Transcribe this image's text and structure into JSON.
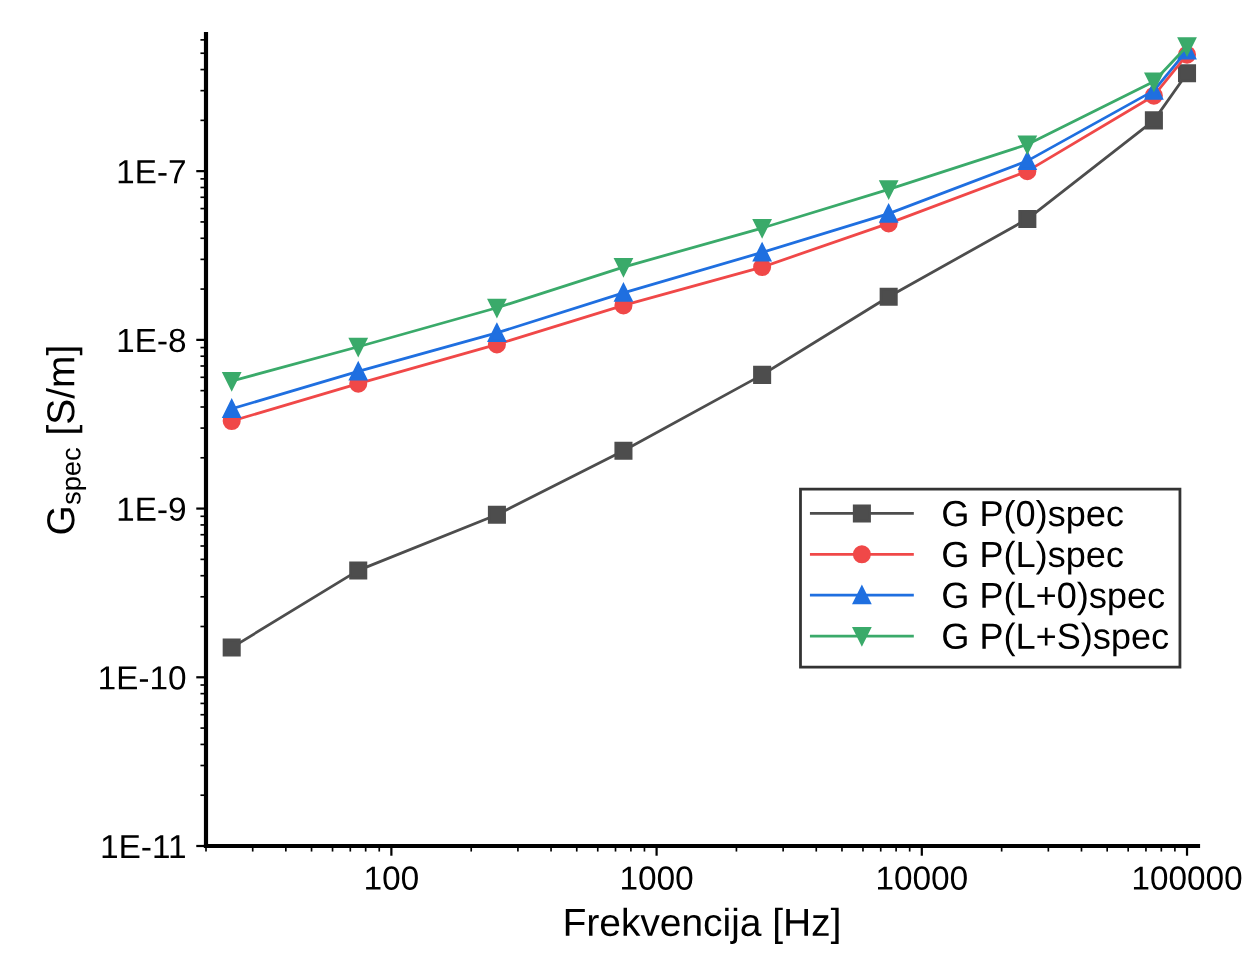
{
  "chart_data": {
    "type": "line",
    "xlabel": "Frekvencija [Hz]",
    "ylabel": "G$_{spec}$ [S/m]",
    "log": "xy",
    "grid": false,
    "legend": "right",
    "x": [
      25,
      75,
      250,
      750,
      2500,
      7500,
      25000,
      75000,
      100000
    ],
    "xlim": [
      20,
      110000
    ],
    "xticks": [
      100,
      1000,
      10000,
      100000
    ],
    "ylim": [
      1e-11,
      6.5e-07
    ],
    "yticks": [
      {
        "value": 1e-11,
        "label": "1E-11"
      },
      {
        "value": 1e-10,
        "label": "1E-10"
      },
      {
        "value": 1e-09,
        "label": "1E-9"
      },
      {
        "value": 1e-08,
        "label": "1E-8"
      },
      {
        "value": 1e-07,
        "label": "1E-7"
      }
    ],
    "line_style": "solid",
    "series": [
      {
        "name": "G P(0)spec",
        "color": "#4d4d4d",
        "marker": "square",
        "values": [
          1.5e-10,
          4.3e-10,
          9.2e-10,
          2.2e-09,
          6.2e-09,
          1.8e-08,
          5.2e-08,
          2e-07,
          3.8e-07
        ]
      },
      {
        "name": "G P(L)spec",
        "color": "#f04848",
        "marker": "circle",
        "values": [
          3.3e-09,
          5.5e-09,
          9.4e-09,
          1.6e-08,
          2.7e-08,
          4.9e-08,
          1e-07,
          2.8e-07,
          4.9e-07
        ]
      },
      {
        "name": "G P(L+0)spec",
        "color": "#1f6fe0",
        "marker": "triangle",
        "values": [
          3.9e-09,
          6.5e-09,
          1.1e-08,
          1.9e-08,
          3.3e-08,
          5.6e-08,
          1.15e-07,
          3e-07,
          5.2e-07
        ]
      },
      {
        "name": "G P(L+S)spec",
        "color": "#3aaa6a",
        "marker": "triangle_down",
        "values": [
          5.7e-09,
          9.1e-09,
          1.55e-08,
          2.7e-08,
          4.6e-08,
          7.8e-08,
          1.44e-07,
          3.4e-07,
          5.5e-07
        ]
      }
    ]
  }
}
